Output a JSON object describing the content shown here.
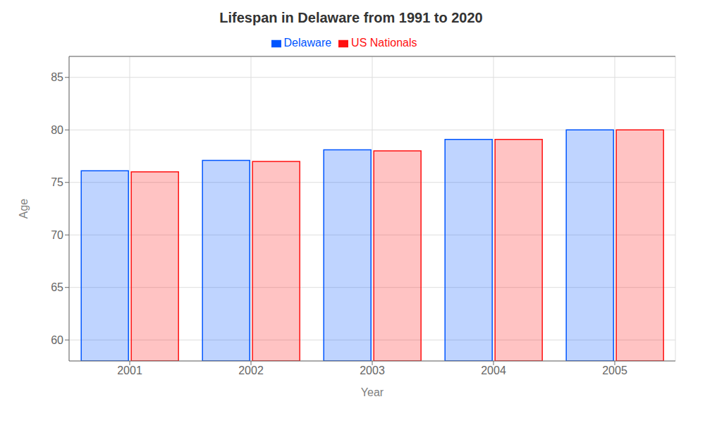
{
  "chart_data": {
    "type": "bar",
    "title": "Lifespan in Delaware from 1991 to 2020",
    "x_label": "Year",
    "y_label": "Age",
    "categories": [
      "2001",
      "2002",
      "2003",
      "2004",
      "2005"
    ],
    "series": [
      {
        "name": "Delaware",
        "color": "#0055FF",
        "values": [
          76.1,
          77.1,
          78.1,
          79.1,
          80.0
        ]
      },
      {
        "name": "US Nationals",
        "color": "#FF1111",
        "values": [
          76.0,
          77.0,
          78.0,
          79.1,
          80.0
        ]
      }
    ],
    "ylim": [
      58.0,
      87.0
    ],
    "yticks": [
      60,
      65,
      70,
      75,
      80,
      85
    ],
    "grid": true,
    "legend": "top"
  }
}
